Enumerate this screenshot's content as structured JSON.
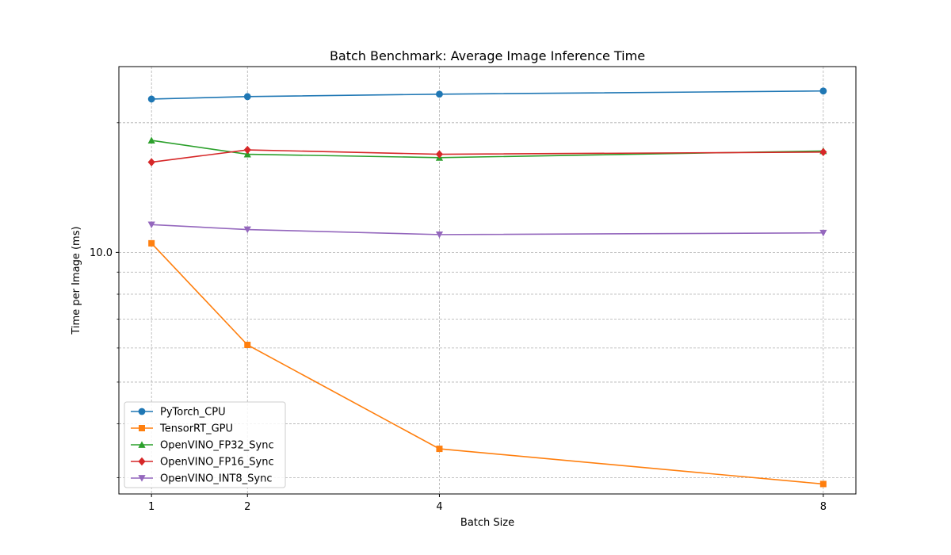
{
  "chart_data": {
    "type": "line",
    "title": "Batch Benchmark: Average Image Inference Time",
    "xlabel": "Batch Size",
    "ylabel": "Time per Image (ms)",
    "x": [
      1,
      2,
      4,
      8
    ],
    "x_tick_labels": [
      "1",
      "2",
      "4",
      "8"
    ],
    "xlim": [
      0.66,
      8.34
    ],
    "y_scale": "log",
    "ylim": [
      2.75,
      27.0
    ],
    "y_tick_labels": [
      {
        "value": 10,
        "label": "10.0"
      }
    ],
    "y_minor_ticks": [
      3,
      4,
      5,
      6,
      7,
      8,
      9,
      20
    ],
    "grid": true,
    "legend_position": "lower-left",
    "series": [
      {
        "name": "PyTorch_CPU",
        "color": "#1f77b4",
        "marker": "circle",
        "values": [
          22.7,
          23.0,
          23.3,
          23.7
        ]
      },
      {
        "name": "TensorRT_GPU",
        "color": "#ff7f0e",
        "marker": "square",
        "values": [
          10.5,
          6.1,
          3.5,
          2.9
        ]
      },
      {
        "name": "OpenVINO_FP32_Sync",
        "color": "#2ca02c",
        "marker": "triangle-up",
        "values": [
          18.2,
          16.9,
          16.6,
          17.2
        ]
      },
      {
        "name": "OpenVINO_FP16_Sync",
        "color": "#d62728",
        "marker": "diamond",
        "values": [
          16.2,
          17.3,
          16.9,
          17.1
        ]
      },
      {
        "name": "OpenVINO_INT8_Sync",
        "color": "#9467bd",
        "marker": "triangle-down",
        "values": [
          11.6,
          11.3,
          11.0,
          11.1
        ]
      }
    ]
  }
}
